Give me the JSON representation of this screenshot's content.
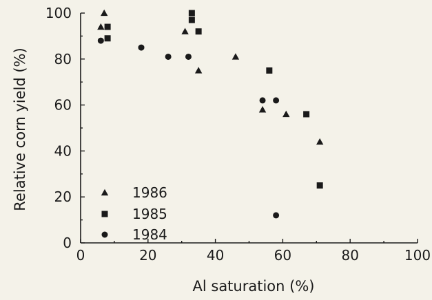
{
  "chart_data": {
    "type": "scatter",
    "xlabel": "Al saturation (%)",
    "ylabel": "Relative corn yield (%)",
    "xlim": [
      0,
      100
    ],
    "ylim": [
      0,
      100
    ],
    "x_ticks": [
      0,
      20,
      40,
      60,
      80,
      100
    ],
    "y_ticks": [
      0,
      20,
      40,
      60,
      80,
      100
    ],
    "x_tick_labels": [
      "0",
      "20",
      "40",
      "60",
      "80",
      "100"
    ],
    "y_tick_labels": [
      "0",
      "20",
      "40",
      "60",
      "80",
      "100"
    ],
    "grid": false,
    "legend_position": "bottom-left",
    "series": [
      {
        "name": "1986",
        "marker": "triangle",
        "points": [
          {
            "x": 6,
            "y": 94
          },
          {
            "x": 7,
            "y": 100
          },
          {
            "x": 31,
            "y": 92
          },
          {
            "x": 35,
            "y": 75
          },
          {
            "x": 46,
            "y": 81
          },
          {
            "x": 54,
            "y": 58
          },
          {
            "x": 61,
            "y": 56
          },
          {
            "x": 71,
            "y": 44
          }
        ]
      },
      {
        "name": "1985",
        "marker": "square",
        "points": [
          {
            "x": 8,
            "y": 94
          },
          {
            "x": 8,
            "y": 89
          },
          {
            "x": 33,
            "y": 100
          },
          {
            "x": 33,
            "y": 97
          },
          {
            "x": 35,
            "y": 92
          },
          {
            "x": 56,
            "y": 75
          },
          {
            "x": 67,
            "y": 56
          },
          {
            "x": 71,
            "y": 25
          }
        ]
      },
      {
        "name": "1984",
        "marker": "circle",
        "points": [
          {
            "x": 6,
            "y": 88
          },
          {
            "x": 18,
            "y": 85
          },
          {
            "x": 26,
            "y": 81
          },
          {
            "x": 32,
            "y": 81
          },
          {
            "x": 54,
            "y": 62
          },
          {
            "x": 58,
            "y": 62
          },
          {
            "x": 58,
            "y": 12
          }
        ]
      }
    ]
  }
}
